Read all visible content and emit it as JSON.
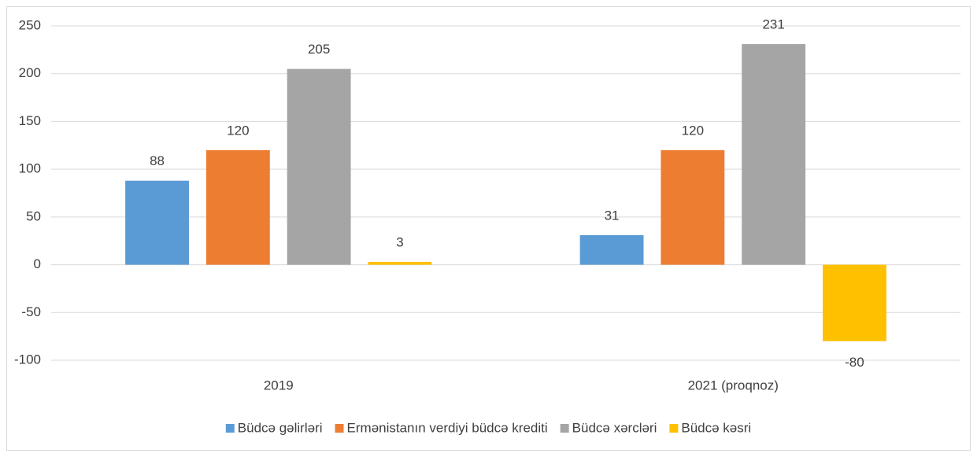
{
  "chart_data": {
    "type": "bar",
    "categories": [
      "2019",
      "2021 (proqnoz)"
    ],
    "series": [
      {
        "name": "Büdcə gəlirləri",
        "color": "#5b9bd5",
        "values": [
          88,
          31
        ]
      },
      {
        "name": "Ermənistanın verdiyi büdcə krediti",
        "color": "#ed7d31",
        "values": [
          120,
          120
        ]
      },
      {
        "name": "Büdcə xərcləri",
        "color": "#a5a5a5",
        "values": [
          205,
          231
        ]
      },
      {
        "name": "Büdcə kəsri",
        "color": "#ffc000",
        "values": [
          3,
          -80
        ]
      }
    ],
    "ylim": [
      -100,
      250
    ],
    "yticks": [
      -100,
      -50,
      0,
      50,
      100,
      150,
      200,
      250
    ],
    "grid": true,
    "legend": "bottom"
  }
}
